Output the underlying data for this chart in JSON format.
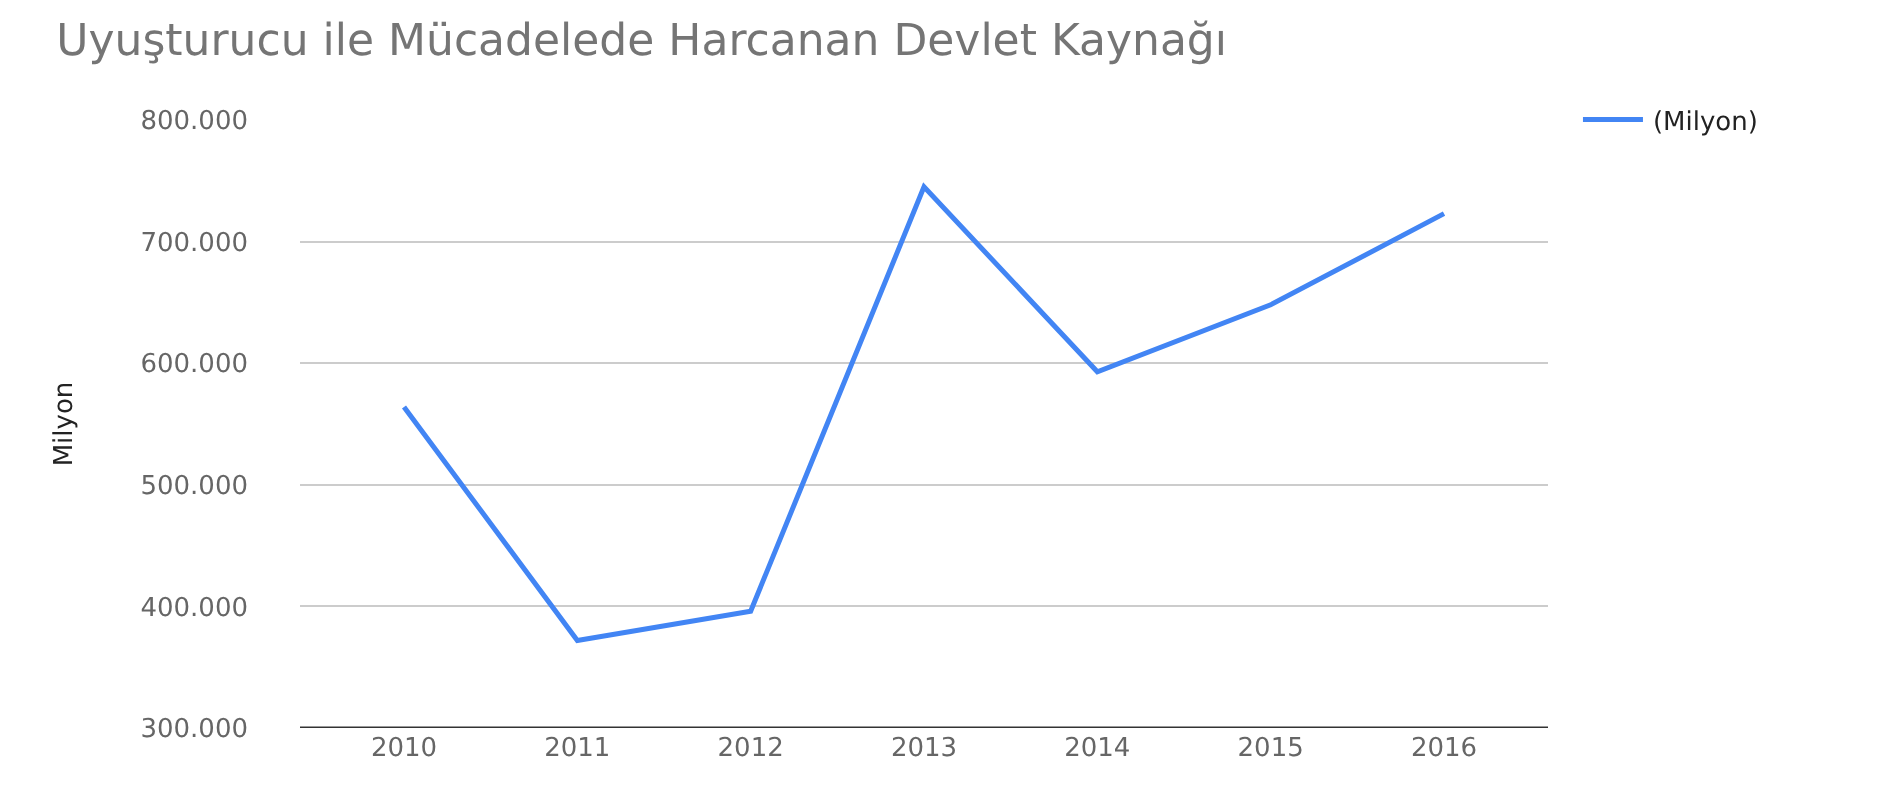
{
  "chart_data": {
    "type": "line",
    "title": "Uyuşturucu ile Mücadelede Harcanan Devlet Kaynağı",
    "ylabel": "Milyon",
    "categories": [
      "2010",
      "2011",
      "2012",
      "2013",
      "2014",
      "2015",
      "2016"
    ],
    "series": [
      {
        "name": "(Milyon)",
        "color": "#4285f4",
        "values": [
          564000,
          372000,
          396000,
          745000,
          593000,
          648000,
          723000
        ]
      }
    ],
    "ylim": [
      300000,
      800000
    ],
    "yticks": [
      {
        "value": 300000,
        "label": "300.000"
      },
      {
        "value": 400000,
        "label": "400.000"
      },
      {
        "value": 500000,
        "label": "500.000"
      },
      {
        "value": 600000,
        "label": "600.000"
      },
      {
        "value": 700000,
        "label": "700.000"
      },
      {
        "value": 800000,
        "label": "800.000"
      }
    ],
    "grid": "y",
    "legend": "top right",
    "marker": "none",
    "line_style": "solid"
  }
}
